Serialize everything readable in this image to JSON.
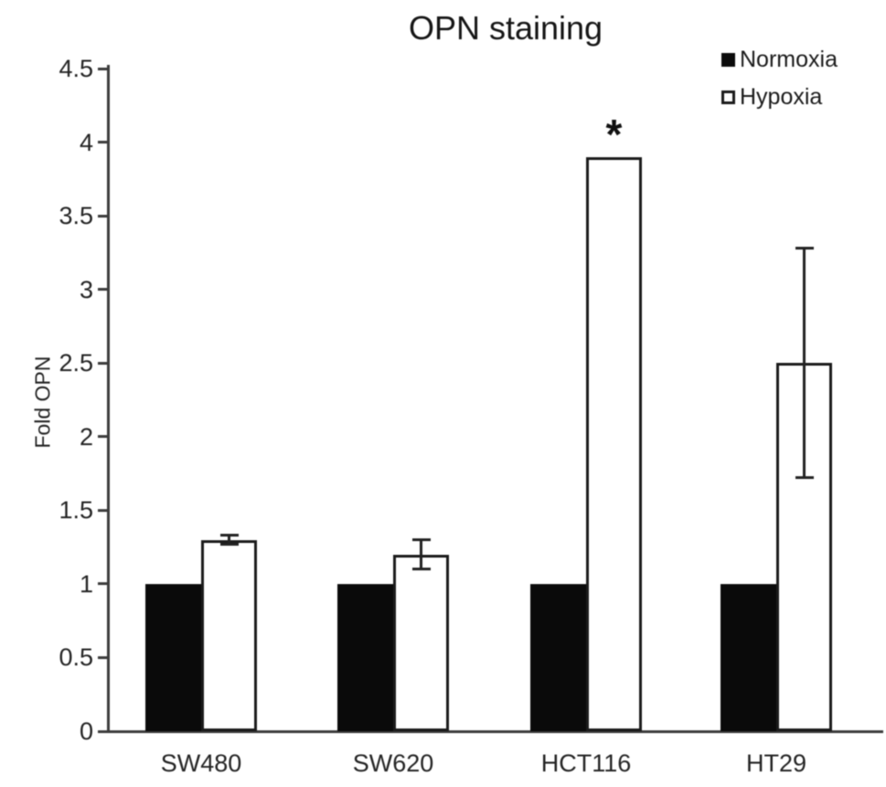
{
  "chart_data": {
    "type": "bar",
    "title": "OPN staining",
    "ylabel": "Fold OPN",
    "xlabel": "",
    "ylim": [
      0,
      4.5
    ],
    "ytick_labels": [
      "0",
      "0.5",
      "1",
      "1.5",
      "2",
      "2.5",
      "3",
      "3.5",
      "4",
      "4.5"
    ],
    "categories": [
      "SW480",
      "SW620",
      "HCT116",
      "HT29"
    ],
    "series": [
      {
        "name": "Normoxia",
        "fill": "black",
        "values": [
          1.0,
          1.0,
          1.0,
          1.0
        ],
        "errors": [
          0,
          0,
          0,
          0
        ]
      },
      {
        "name": "Hypoxia",
        "fill": "white",
        "values": [
          1.3,
          1.2,
          3.9,
          2.5
        ],
        "errors": [
          0.03,
          0.1,
          0,
          0.78
        ]
      }
    ],
    "annotations": [
      {
        "category": "HCT116",
        "series": "Hypoxia",
        "text": "*"
      }
    ],
    "legend_position": "top-right",
    "grid": false,
    "colors": {
      "normoxia": "#000000",
      "hypoxia": "#ffffff",
      "axis": "#3c3c3c",
      "text": "#242424"
    }
  },
  "legend": {
    "items": [
      {
        "label": "Normoxia",
        "swatch": "filled-black-square"
      },
      {
        "label": "Hypoxia",
        "swatch": "open-white-square"
      }
    ]
  }
}
